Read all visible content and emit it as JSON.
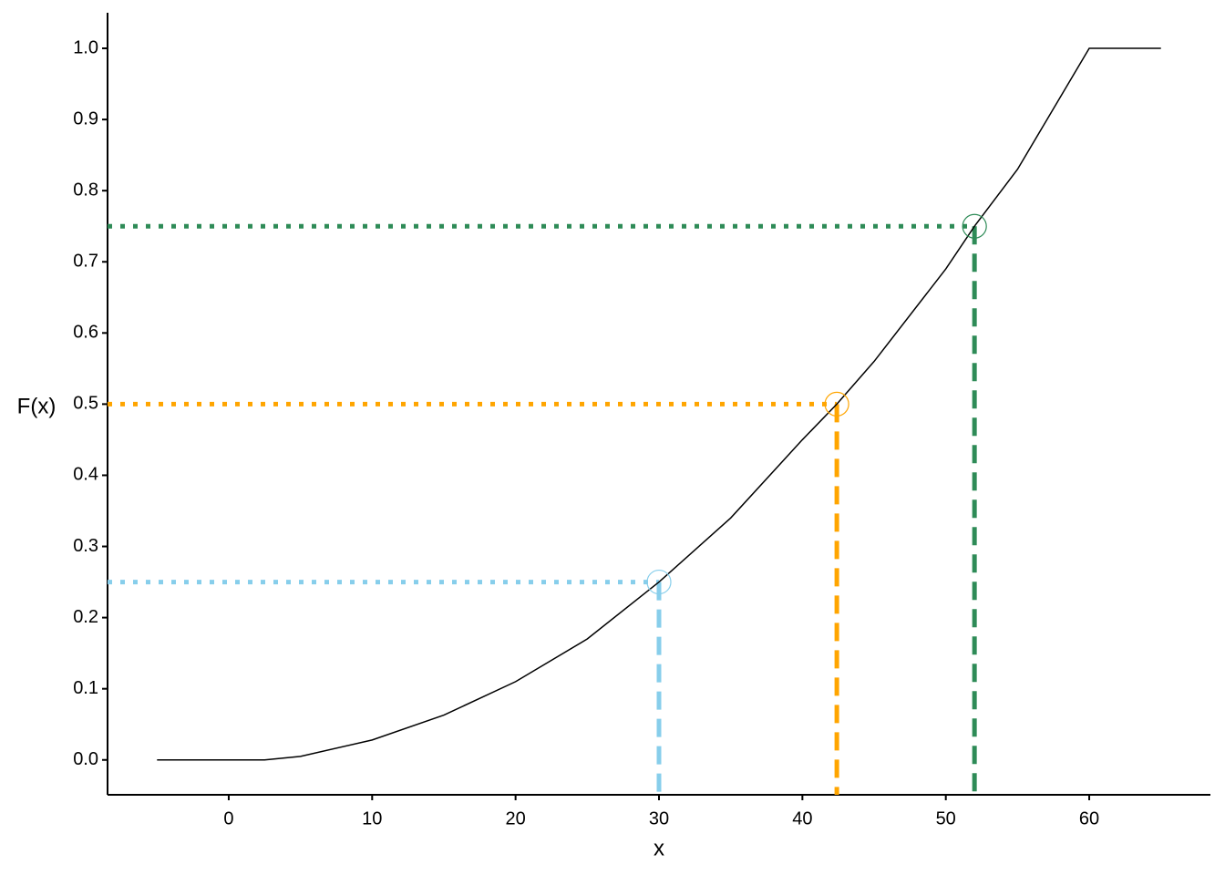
{
  "chart_data": {
    "type": "line",
    "x_label": "x",
    "y_label": "F(x)",
    "xlim": [
      -8.45,
      68.45
    ],
    "ylim": [
      -0.049,
      1.05
    ],
    "xticks": [
      0,
      10,
      20,
      30,
      40,
      50,
      60
    ],
    "yticks": [
      {
        "value": 0,
        "label": "0.0"
      },
      0.1,
      0.2,
      0.3,
      0.4,
      0.5,
      0.6,
      0.7,
      0.8,
      0.9,
      {
        "value": 1,
        "label": "1.0"
      }
    ],
    "curve": {
      "color": "#000000",
      "x": [
        -5,
        0,
        2.5,
        5,
        10,
        15,
        20,
        25,
        30,
        35,
        40,
        42.4,
        45,
        50,
        52,
        55,
        60,
        65
      ],
      "values": [
        0,
        0,
        0,
        0.005,
        0.028,
        0.063,
        0.11,
        0.17,
        0.25,
        0.34,
        0.45,
        0.5,
        0.56,
        0.69,
        0.75,
        0.83,
        1.0,
        1.0
      ]
    },
    "points": {
      "x": [
        30,
        42.4,
        52
      ],
      "values": [
        0.25,
        0.5,
        0.75
      ],
      "colors": [
        "#87ceeb",
        "#ffa500",
        "#2e8b57"
      ]
    }
  }
}
